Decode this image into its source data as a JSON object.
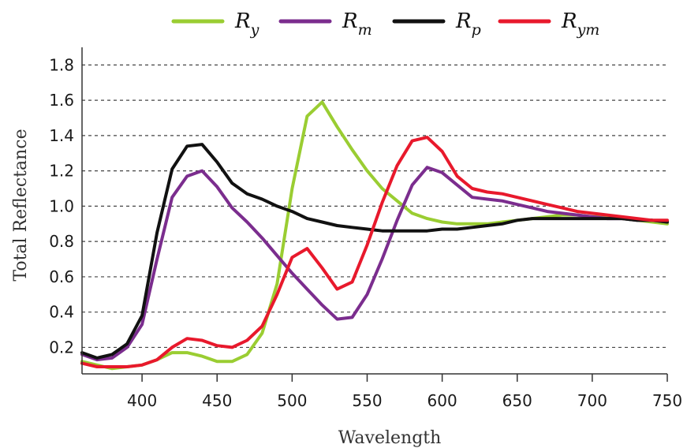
{
  "chart_data": {
    "type": "line",
    "xlabel": "Wavelength",
    "ylabel": "Total Reflectance",
    "xlim": [
      360,
      750
    ],
    "ylim": [
      0.05,
      1.9
    ],
    "xticks": [
      "400",
      "450",
      "500",
      "550",
      "600",
      "650",
      "700",
      "750"
    ],
    "yticks": [
      "0.2",
      "0.4",
      "0.6",
      "0.8",
      "1.0",
      "1.2",
      "1.4",
      "1.6",
      "1.8"
    ],
    "grid": "horizontal dashed",
    "legend": "top",
    "x": [
      360,
      370,
      380,
      390,
      400,
      410,
      420,
      430,
      440,
      450,
      460,
      470,
      480,
      490,
      500,
      510,
      520,
      530,
      540,
      550,
      560,
      570,
      580,
      590,
      600,
      610,
      620,
      630,
      640,
      650,
      660,
      670,
      680,
      690,
      700,
      710,
      720,
      730,
      740,
      750
    ],
    "series": [
      {
        "name": "R",
        "sub": "y",
        "color": "#9acd32",
        "values": [
          0.12,
          0.1,
          0.08,
          0.09,
          0.1,
          0.13,
          0.17,
          0.17,
          0.15,
          0.12,
          0.12,
          0.16,
          0.28,
          0.56,
          1.1,
          1.51,
          1.59,
          1.45,
          1.32,
          1.2,
          1.1,
          1.03,
          0.96,
          0.93,
          0.91,
          0.9,
          0.9,
          0.9,
          0.91,
          0.92,
          0.93,
          0.94,
          0.95,
          0.95,
          0.94,
          0.94,
          0.93,
          0.92,
          0.91,
          0.9
        ]
      },
      {
        "name": "R",
        "sub": "m",
        "color": "#7b2d8e",
        "values": [
          0.16,
          0.13,
          0.14,
          0.2,
          0.33,
          0.7,
          1.05,
          1.17,
          1.2,
          1.11,
          0.99,
          0.91,
          0.82,
          0.72,
          0.62,
          0.53,
          0.44,
          0.36,
          0.37,
          0.5,
          0.7,
          0.92,
          1.12,
          1.22,
          1.19,
          1.12,
          1.05,
          1.04,
          1.03,
          1.01,
          0.99,
          0.97,
          0.96,
          0.95,
          0.94,
          0.93,
          0.93,
          0.92,
          0.92,
          0.91
        ]
      },
      {
        "name": "R",
        "sub": "p",
        "color": "#111111",
        "values": [
          0.17,
          0.14,
          0.16,
          0.22,
          0.38,
          0.85,
          1.21,
          1.34,
          1.35,
          1.25,
          1.13,
          1.07,
          1.04,
          1.0,
          0.97,
          0.93,
          0.91,
          0.89,
          0.88,
          0.87,
          0.86,
          0.86,
          0.86,
          0.86,
          0.87,
          0.87,
          0.88,
          0.89,
          0.9,
          0.92,
          0.93,
          0.93,
          0.93,
          0.93,
          0.93,
          0.93,
          0.93,
          0.92,
          0.92,
          0.91
        ]
      },
      {
        "name": "R",
        "sub": "ym",
        "color": "#e8192c",
        "values": [
          0.11,
          0.09,
          0.09,
          0.09,
          0.1,
          0.13,
          0.2,
          0.25,
          0.24,
          0.21,
          0.2,
          0.24,
          0.32,
          0.5,
          0.71,
          0.76,
          0.65,
          0.53,
          0.57,
          0.78,
          1.02,
          1.23,
          1.37,
          1.39,
          1.31,
          1.17,
          1.1,
          1.08,
          1.07,
          1.05,
          1.03,
          1.01,
          0.99,
          0.97,
          0.96,
          0.95,
          0.94,
          0.93,
          0.92,
          0.92
        ]
      }
    ]
  }
}
